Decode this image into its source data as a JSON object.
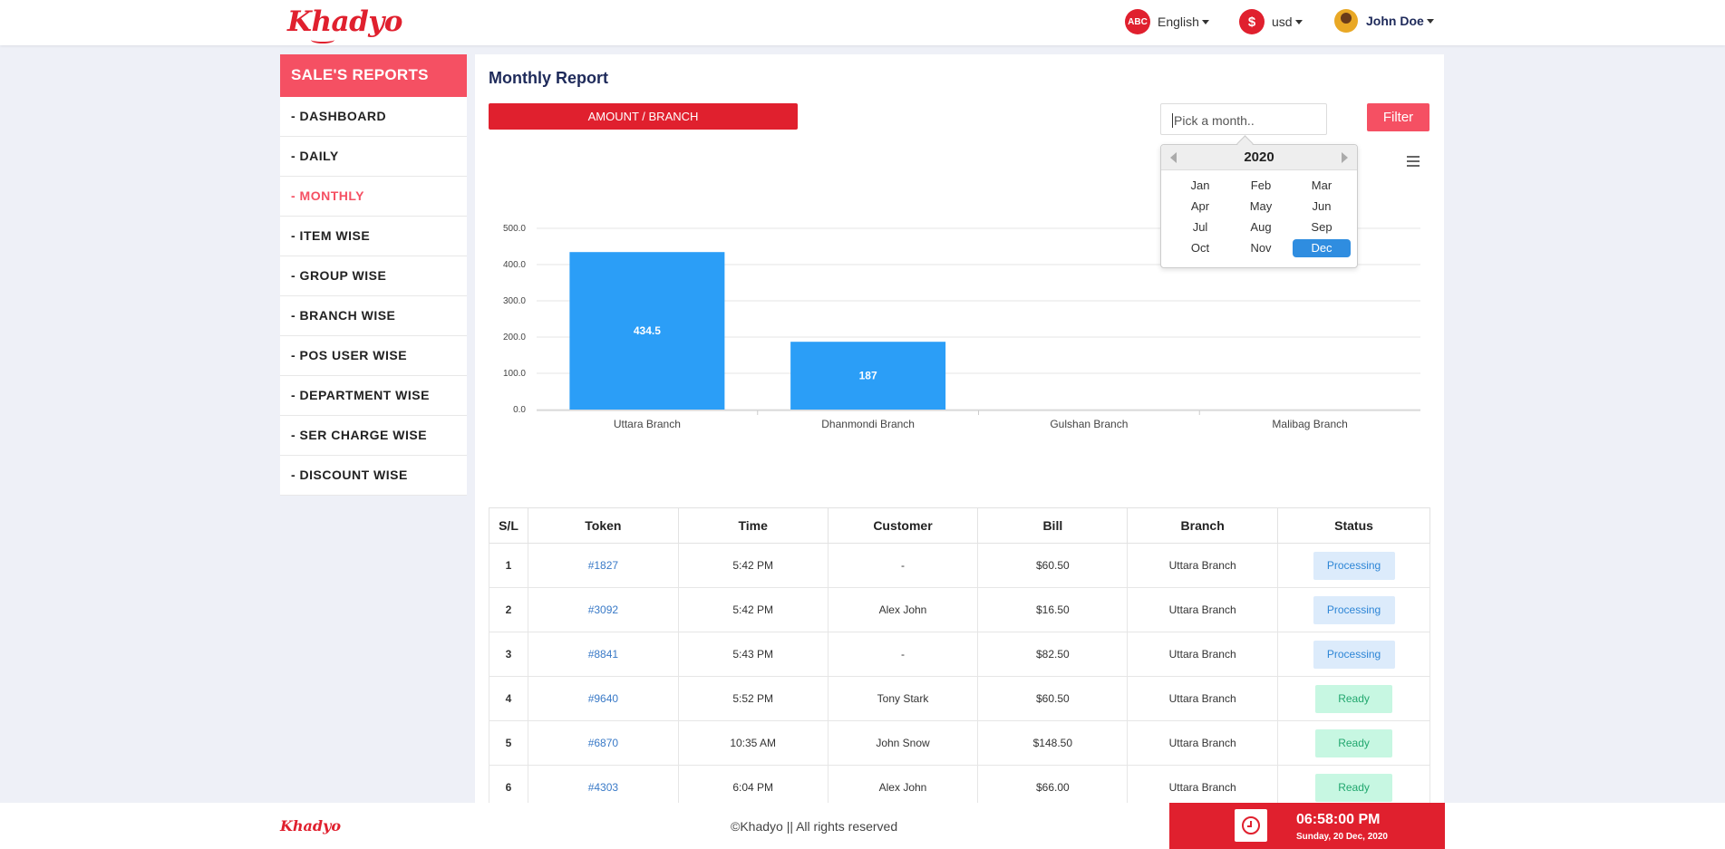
{
  "brand": {
    "logo_text": "Khadyo"
  },
  "topnav": {
    "language": {
      "icon_text": "ABC",
      "label": "English"
    },
    "currency": {
      "icon_text": "$",
      "label": "usd"
    },
    "user": {
      "name": "John Doe"
    }
  },
  "sidebar": {
    "title": "SALE'S REPORTS",
    "items": [
      {
        "label": "- DASHBOARD",
        "active": false
      },
      {
        "label": "- DAILY",
        "active": false
      },
      {
        "label": "- MONTHLY",
        "active": true
      },
      {
        "label": "- ITEM WISE",
        "active": false
      },
      {
        "label": "- GROUP WISE",
        "active": false
      },
      {
        "label": "- BRANCH WISE",
        "active": false
      },
      {
        "label": "- POS USER WISE",
        "active": false
      },
      {
        "label": "- DEPARTMENT WISE",
        "active": false
      },
      {
        "label": "- SER CHARGE WISE",
        "active": false
      },
      {
        "label": "- DISCOUNT WISE",
        "active": false
      }
    ]
  },
  "main": {
    "title": "Monthly Report",
    "amount_button": "AMOUNT / BRANCH",
    "month_placeholder": "Pick a month..",
    "filter_button": "Filter"
  },
  "picker": {
    "year": "2020",
    "months": [
      "Jan",
      "Feb",
      "Mar",
      "Apr",
      "May",
      "Jun",
      "Jul",
      "Aug",
      "Sep",
      "Oct",
      "Nov",
      "Dec"
    ],
    "selected": "Dec"
  },
  "chart_data": {
    "type": "bar",
    "categories": [
      "Uttara Branch",
      "Dhanmondi Branch",
      "Gulshan Branch",
      "Malibag Branch"
    ],
    "values": [
      434.5,
      187,
      0,
      0
    ],
    "value_labels": [
      "434.5",
      "187",
      "",
      ""
    ],
    "yticks": [
      "0.0",
      "100.0",
      "200.0",
      "300.0",
      "400.0",
      "500.0"
    ],
    "ylim": [
      0,
      500
    ],
    "grid": true,
    "bar_color": "#2b9ef7"
  },
  "table": {
    "headers": [
      "S/L",
      "Token",
      "Time",
      "Customer",
      "Bill",
      "Branch",
      "Status"
    ],
    "rows": [
      {
        "sl": "1",
        "token": "#1827",
        "time": "5:42 PM",
        "customer": "-",
        "bill": "$60.50",
        "branch": "Uttara Branch",
        "status": "Processing"
      },
      {
        "sl": "2",
        "token": "#3092",
        "time": "5:42 PM",
        "customer": "Alex John",
        "bill": "$16.50",
        "branch": "Uttara Branch",
        "status": "Processing"
      },
      {
        "sl": "3",
        "token": "#8841",
        "time": "5:43 PM",
        "customer": "-",
        "bill": "$82.50",
        "branch": "Uttara Branch",
        "status": "Processing"
      },
      {
        "sl": "4",
        "token": "#9640",
        "time": "5:52 PM",
        "customer": "Tony Stark",
        "bill": "$60.50",
        "branch": "Uttara Branch",
        "status": "Ready"
      },
      {
        "sl": "5",
        "token": "#6870",
        "time": "10:35 AM",
        "customer": "John Snow",
        "bill": "$148.50",
        "branch": "Uttara Branch",
        "status": "Ready"
      },
      {
        "sl": "6",
        "token": "#4303",
        "time": "6:04 PM",
        "customer": "Alex John",
        "bill": "$66.00",
        "branch": "Uttara Branch",
        "status": "Ready"
      }
    ]
  },
  "footer": {
    "logo_text": "Khadyo",
    "copyright": "©Khadyo || All rights reserved",
    "time": "06:58:00 PM",
    "date": "Sunday, 20 Dec, 2020"
  },
  "colors": {
    "primary_red": "#e0202e",
    "accent_pink": "#f55063",
    "bar_blue": "#2b9ef7",
    "selected_blue": "#2f8de0"
  }
}
